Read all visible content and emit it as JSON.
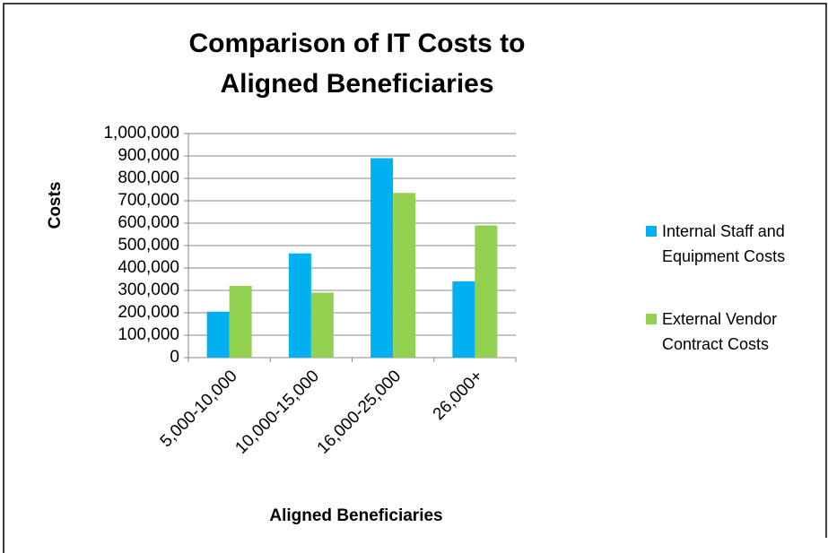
{
  "chart_data": {
    "type": "bar",
    "title": "Comparison of IT Costs to Aligned Beneficiaries",
    "x_label": "Aligned Beneficiaries",
    "y_label": "Costs",
    "categories": [
      "5,000-10,000",
      "10,000-15,000",
      "16,000-25,000",
      "26,000+"
    ],
    "series": [
      {
        "name": "Internal Staff and Equipment Costs",
        "color": "#00b0f0",
        "values": [
          205000,
          465000,
          890000,
          340000
        ]
      },
      {
        "name": "External Vendor Contract Costs",
        "color": "#92d050",
        "values": [
          320000,
          290000,
          735000,
          590000
        ]
      }
    ],
    "ylim": [
      0,
      1000000
    ],
    "yticks": [
      0,
      {
        "value": 100000,
        "label": "100,000"
      },
      {
        "value": 200000,
        "label": "200,000"
      },
      {
        "value": 300000,
        "label": "300,000"
      },
      {
        "value": 400000,
        "label": "400,000"
      },
      {
        "value": 500000,
        "label": "500,000"
      },
      {
        "value": 600000,
        "label": "600,000"
      },
      {
        "value": 700000,
        "label": "700,000"
      },
      {
        "value": 800000,
        "label": "800,000"
      },
      {
        "value": 900000,
        "label": "900,000"
      },
      {
        "value": 1000000,
        "label": "1,000,000"
      }
    ],
    "grid": true,
    "legend": "right"
  }
}
